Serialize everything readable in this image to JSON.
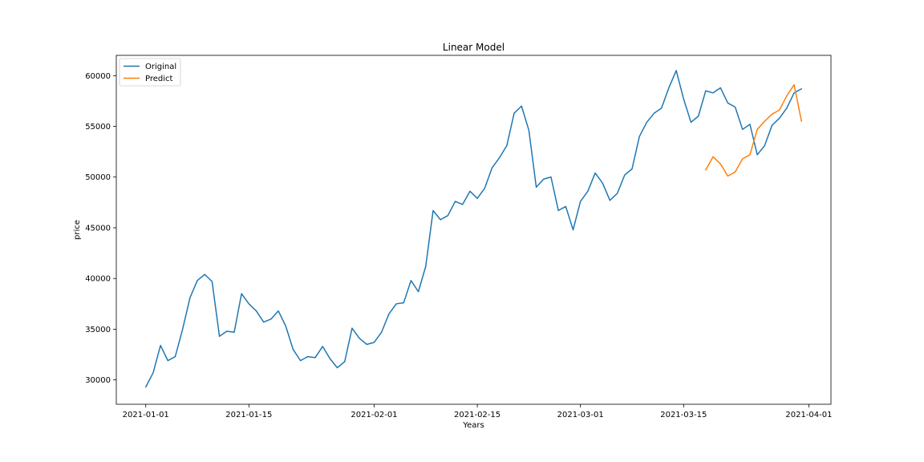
{
  "chart_data": {
    "type": "line",
    "title": "Linear Model",
    "xlabel": "Years",
    "ylabel": "price",
    "x_tick_labels": [
      "2021-01-01",
      "2021-01-15",
      "2021-02-01",
      "2021-02-15",
      "2021-03-01",
      "2021-03-15",
      "2021-04-01"
    ],
    "y_ticks": [
      30000,
      35000,
      40000,
      45000,
      50000,
      55000,
      60000
    ],
    "y_tick_labels": [
      "30000",
      "35000",
      "40000",
      "45000",
      "50000",
      "55000",
      "60000"
    ],
    "xlim": [
      "2020-12-28",
      "2021-04-04"
    ],
    "ylim": [
      27600,
      62000
    ],
    "legend_position": "upper-left",
    "series": [
      {
        "name": "Original",
        "color": "#1f77b4",
        "x": [
          "2021-01-01",
          "2021-01-02",
          "2021-01-03",
          "2021-01-04",
          "2021-01-05",
          "2021-01-06",
          "2021-01-07",
          "2021-01-08",
          "2021-01-09",
          "2021-01-10",
          "2021-01-11",
          "2021-01-12",
          "2021-01-13",
          "2021-01-14",
          "2021-01-15",
          "2021-01-16",
          "2021-01-17",
          "2021-01-18",
          "2021-01-19",
          "2021-01-20",
          "2021-01-21",
          "2021-01-22",
          "2021-01-23",
          "2021-01-24",
          "2021-01-25",
          "2021-01-26",
          "2021-01-27",
          "2021-01-28",
          "2021-01-29",
          "2021-01-30",
          "2021-01-31",
          "2021-02-01",
          "2021-02-02",
          "2021-02-03",
          "2021-02-04",
          "2021-02-05",
          "2021-02-06",
          "2021-02-07",
          "2021-02-08",
          "2021-02-09",
          "2021-02-10",
          "2021-02-11",
          "2021-02-12",
          "2021-02-13",
          "2021-02-14",
          "2021-02-15",
          "2021-02-16",
          "2021-02-17",
          "2021-02-18",
          "2021-02-19",
          "2021-02-20",
          "2021-02-21",
          "2021-02-22",
          "2021-02-23",
          "2021-02-24",
          "2021-02-25",
          "2021-02-26",
          "2021-02-27",
          "2021-02-28",
          "2021-03-01",
          "2021-03-02",
          "2021-03-03",
          "2021-03-04",
          "2021-03-05",
          "2021-03-06",
          "2021-03-07",
          "2021-03-08",
          "2021-03-09",
          "2021-03-10",
          "2021-03-11",
          "2021-03-12",
          "2021-03-13",
          "2021-03-14",
          "2021-03-15",
          "2021-03-16",
          "2021-03-17",
          "2021-03-18",
          "2021-03-19",
          "2021-03-20",
          "2021-03-21",
          "2021-03-22",
          "2021-03-23",
          "2021-03-24",
          "2021-03-25",
          "2021-03-26",
          "2021-03-27",
          "2021-03-28",
          "2021-03-29",
          "2021-03-30",
          "2021-03-31"
        ],
        "y": [
          29300,
          30700,
          33400,
          31900,
          32300,
          35000,
          38100,
          39800,
          40400,
          39700,
          34300,
          34800,
          34700,
          38500,
          37500,
          36800,
          35700,
          36000,
          36800,
          35300,
          33000,
          31900,
          32300,
          32200,
          33300,
          32100,
          31200,
          31800,
          35100,
          34100,
          33500,
          33700,
          34700,
          36500,
          37500,
          37600,
          39800,
          38700,
          41200,
          46700,
          45800,
          46200,
          47600,
          47300,
          48600,
          47900,
          48900,
          50900,
          51900,
          53100,
          56300,
          57000,
          54600,
          49000,
          49800,
          50000,
          46700,
          47100,
          44800,
          47600,
          48600,
          50400,
          49400,
          47700,
          48400,
          50200,
          50800,
          54000,
          55400,
          56300,
          56800,
          58800,
          60500,
          57700,
          55400,
          56000,
          58500,
          58300,
          58800,
          57300,
          56900,
          54700,
          55200,
          52200,
          53100,
          55100,
          55800,
          56800,
          58300,
          58700
        ]
      },
      {
        "name": "Predict",
        "color": "#ff7f0e",
        "x": [
          "2021-03-18",
          "2021-03-19",
          "2021-03-20",
          "2021-03-21",
          "2021-03-22",
          "2021-03-23",
          "2021-03-24",
          "2021-03-25",
          "2021-03-26",
          "2021-03-27",
          "2021-03-28",
          "2021-03-29",
          "2021-03-30",
          "2021-03-31"
        ],
        "y": [
          50700,
          52000,
          51300,
          50100,
          50500,
          51800,
          52200,
          54700,
          55500,
          56200,
          56600,
          58000,
          59100,
          55500
        ]
      }
    ]
  }
}
